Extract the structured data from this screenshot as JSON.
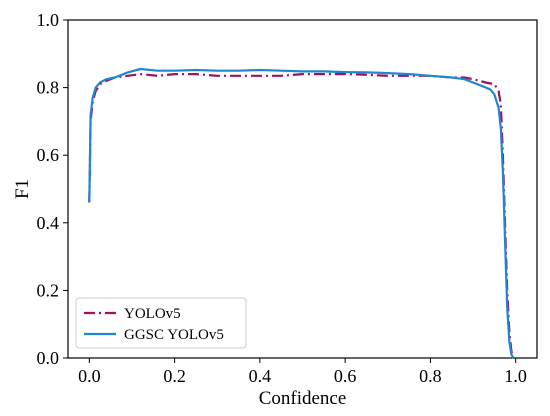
{
  "chart_data": {
    "type": "line",
    "xlabel": "Confidence",
    "ylabel": "F1",
    "xlim": [
      -0.05,
      1.05
    ],
    "ylim": [
      0.0,
      1.0
    ],
    "xticks": [
      "0.0",
      "0.2",
      "0.4",
      "0.6",
      "0.8",
      "1.0"
    ],
    "yticks": [
      "0.0",
      "0.2",
      "0.4",
      "0.6",
      "0.8",
      "1.0"
    ],
    "grid": false,
    "legend_position": "lower-left",
    "series": [
      {
        "name": "YOLOv5",
        "color": "#a0105c",
        "style": "dashdot",
        "points": [
          [
            0.0,
            0.46
          ],
          [
            0.003,
            0.7
          ],
          [
            0.008,
            0.76
          ],
          [
            0.015,
            0.79
          ],
          [
            0.025,
            0.81
          ],
          [
            0.04,
            0.82
          ],
          [
            0.06,
            0.83
          ],
          [
            0.09,
            0.835
          ],
          [
            0.12,
            0.84
          ],
          [
            0.16,
            0.835
          ],
          [
            0.2,
            0.84
          ],
          [
            0.25,
            0.84
          ],
          [
            0.3,
            0.835
          ],
          [
            0.35,
            0.835
          ],
          [
            0.4,
            0.835
          ],
          [
            0.45,
            0.835
          ],
          [
            0.5,
            0.84
          ],
          [
            0.55,
            0.84
          ],
          [
            0.6,
            0.84
          ],
          [
            0.65,
            0.838
          ],
          [
            0.7,
            0.835
          ],
          [
            0.75,
            0.835
          ],
          [
            0.8,
            0.835
          ],
          [
            0.85,
            0.83
          ],
          [
            0.88,
            0.83
          ],
          [
            0.9,
            0.825
          ],
          [
            0.93,
            0.815
          ],
          [
            0.95,
            0.81
          ],
          [
            0.96,
            0.79
          ],
          [
            0.965,
            0.75
          ],
          [
            0.97,
            0.6
          ],
          [
            0.975,
            0.4
          ],
          [
            0.98,
            0.2
          ],
          [
            0.985,
            0.08
          ],
          [
            0.99,
            0.02
          ],
          [
            0.995,
            0.0
          ]
        ]
      },
      {
        "name": "GGSC YOLOv5",
        "color": "#1f86d6",
        "style": "solid",
        "points": [
          [
            0.0,
            0.46
          ],
          [
            0.003,
            0.72
          ],
          [
            0.008,
            0.77
          ],
          [
            0.015,
            0.8
          ],
          [
            0.025,
            0.815
          ],
          [
            0.04,
            0.825
          ],
          [
            0.06,
            0.83
          ],
          [
            0.09,
            0.845
          ],
          [
            0.12,
            0.855
          ],
          [
            0.16,
            0.85
          ],
          [
            0.2,
            0.85
          ],
          [
            0.25,
            0.852
          ],
          [
            0.3,
            0.85
          ],
          [
            0.35,
            0.85
          ],
          [
            0.4,
            0.852
          ],
          [
            0.45,
            0.85
          ],
          [
            0.5,
            0.848
          ],
          [
            0.55,
            0.848
          ],
          [
            0.6,
            0.846
          ],
          [
            0.65,
            0.845
          ],
          [
            0.7,
            0.843
          ],
          [
            0.75,
            0.84
          ],
          [
            0.8,
            0.835
          ],
          [
            0.85,
            0.83
          ],
          [
            0.88,
            0.825
          ],
          [
            0.9,
            0.815
          ],
          [
            0.92,
            0.805
          ],
          [
            0.94,
            0.795
          ],
          [
            0.95,
            0.78
          ],
          [
            0.96,
            0.74
          ],
          [
            0.965,
            0.68
          ],
          [
            0.97,
            0.55
          ],
          [
            0.975,
            0.35
          ],
          [
            0.98,
            0.15
          ],
          [
            0.985,
            0.05
          ],
          [
            0.99,
            0.01
          ],
          [
            0.995,
            0.0
          ]
        ]
      }
    ]
  }
}
